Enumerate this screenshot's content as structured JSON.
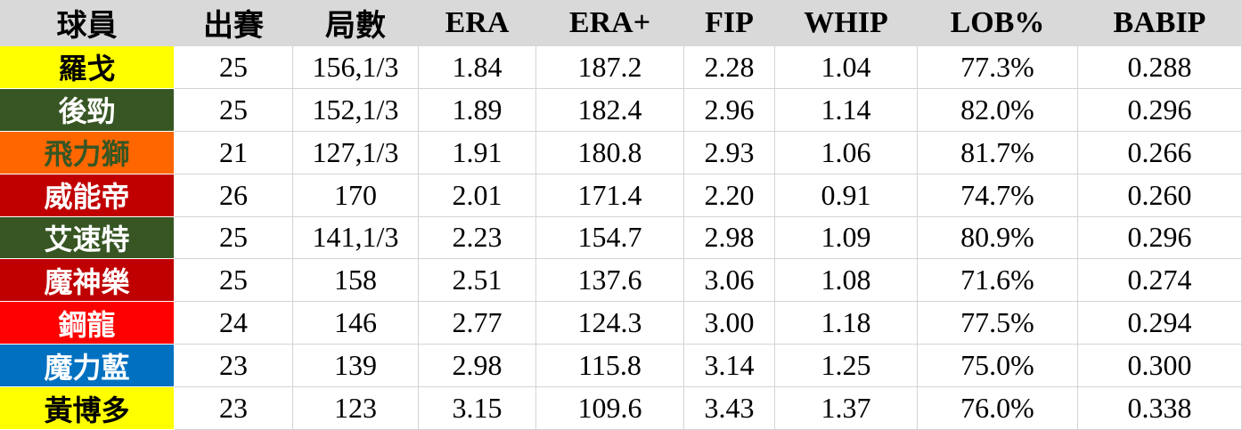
{
  "table": {
    "header": [
      "球員",
      "出賽",
      "局數",
      "ERA",
      "ERA+",
      "FIP",
      "WHIP",
      "LOB%",
      "BABIP"
    ],
    "rows": [
      [
        "羅戈",
        "25",
        "156,1/3",
        "1.84",
        "187.2",
        "2.28",
        "1.04",
        "77.3%",
        "0.288"
      ],
      [
        "後勁",
        "25",
        "152,1/3",
        "1.89",
        "182.4",
        "2.96",
        "1.14",
        "82.0%",
        "0.296"
      ],
      [
        "飛力獅",
        "21",
        "127,1/3",
        "1.91",
        "180.8",
        "2.93",
        "1.06",
        "81.7%",
        "0.266"
      ],
      [
        "威能帝",
        "26",
        "170",
        "2.01",
        "171.4",
        "2.20",
        "0.91",
        "74.7%",
        "0.260"
      ],
      [
        "艾速特",
        "25",
        "141,1/3",
        "2.23",
        "154.7",
        "2.98",
        "1.09",
        "80.9%",
        "0.296"
      ],
      [
        "魔神樂",
        "25",
        "158",
        "2.51",
        "137.6",
        "3.06",
        "1.08",
        "71.6%",
        "0.274"
      ],
      [
        "鋼龍",
        "24",
        "146",
        "2.77",
        "124.3",
        "3.00",
        "1.18",
        "77.5%",
        "0.294"
      ],
      [
        "魔力藍",
        "23",
        "139",
        "2.98",
        "115.8",
        "3.14",
        "1.25",
        "75.0%",
        "0.300"
      ],
      [
        "黃博多",
        "23",
        "123",
        "3.15",
        "109.6",
        "3.43",
        "1.37",
        "76.0%",
        "0.338"
      ]
    ]
  }
}
